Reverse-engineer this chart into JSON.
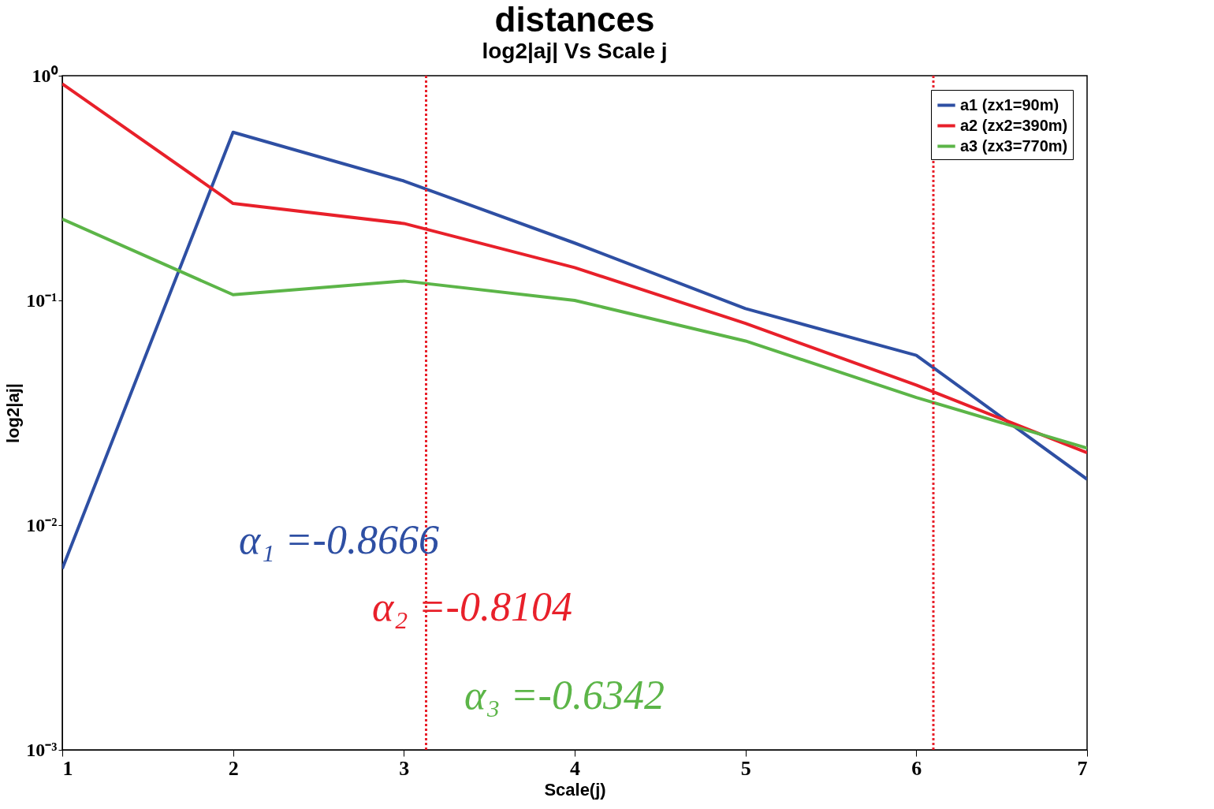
{
  "chart_data": {
    "type": "line",
    "title": "distances",
    "subtitle": "log2|aj| Vs Scale j",
    "xlabel": "Scale(j)",
    "ylabel": "log2|aj|",
    "x": [
      1,
      2,
      3,
      4,
      5,
      6,
      7
    ],
    "series": [
      {
        "name": "a1 (zx1=90m)",
        "color": "#2e4fa3",
        "values": [
          0.0064,
          0.56,
          0.34,
          0.18,
          0.092,
          0.057,
          0.016
        ]
      },
      {
        "name": "a2 (zx2=390m)",
        "color": "#e8202a",
        "values": [
          0.92,
          0.27,
          0.22,
          0.14,
          0.079,
          0.042,
          0.021
        ]
      },
      {
        "name": "a3 (zx3=770m)",
        "color": "#5cb548",
        "values": [
          0.23,
          0.106,
          0.122,
          0.1,
          0.066,
          0.037,
          0.022
        ]
      }
    ],
    "log": true,
    "xlim": [
      1,
      7
    ],
    "xticks": [
      1,
      2,
      3,
      4,
      5,
      6,
      7
    ],
    "ylim": [
      0.001,
      1
    ],
    "yticks": [
      {
        "value": 0.001,
        "label": "10⁻³"
      },
      {
        "value": 0.01,
        "label": "10⁻²"
      },
      {
        "value": 0.1,
        "label": "10⁻¹"
      },
      {
        "value": 1,
        "label": "10⁰"
      }
    ],
    "ref_lines": [
      {
        "axis": "x",
        "value": 3.13,
        "color": "#e8202a",
        "line_style": "dotted"
      },
      {
        "axis": "x",
        "value": 6.1,
        "color": "#e8202a",
        "line_style": "dotted"
      }
    ],
    "annotations": [
      "α₁ =-0.8666",
      "α₂ =-0.8104",
      "α₃ =-0.6342"
    ],
    "legend": "top right",
    "grid": false,
    "marker": "none",
    "line_style": "solid"
  }
}
